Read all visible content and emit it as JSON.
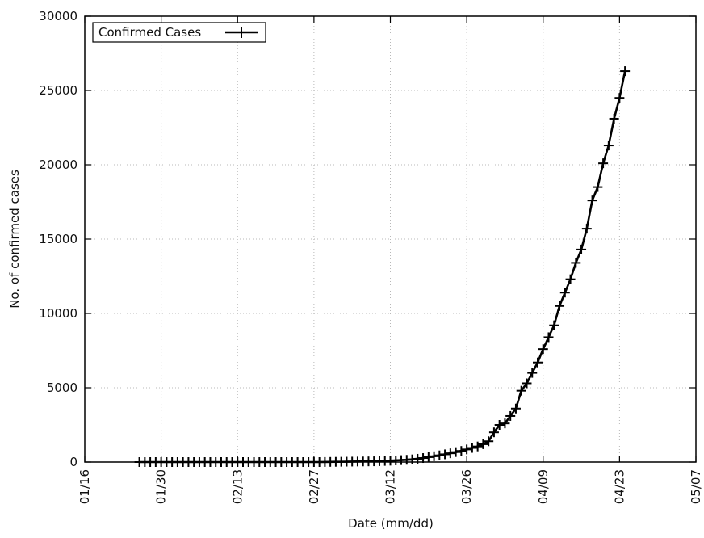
{
  "chart_data": {
    "type": "line",
    "title": "",
    "xlabel": "Date (mm/dd)",
    "ylabel": "No. of confirmed cases",
    "x_type": "date",
    "year": 2020,
    "xlim": [
      "2020-01-16",
      "2020-05-07"
    ],
    "ylim": [
      0,
      30000
    ],
    "x_ticks": [
      "01/16",
      "01/30",
      "02/13",
      "02/27",
      "03/12",
      "03/26",
      "04/09",
      "04/23",
      "05/07"
    ],
    "y_ticks": [
      "0",
      "5000",
      "10000",
      "15000",
      "20000",
      "25000",
      "30000"
    ],
    "grid": true,
    "legend": {
      "position": "top-left"
    },
    "series": [
      {
        "name": "Confirmed Cases",
        "color": "#000000",
        "marker": "plus",
        "points": [
          [
            "2020-01-26",
            0
          ],
          [
            "2020-01-27",
            0
          ],
          [
            "2020-01-28",
            0
          ],
          [
            "2020-01-29",
            0
          ],
          [
            "2020-01-30",
            0
          ],
          [
            "2020-01-31",
            0
          ],
          [
            "2020-02-01",
            0
          ],
          [
            "2020-02-02",
            0
          ],
          [
            "2020-02-03",
            0
          ],
          [
            "2020-02-04",
            0
          ],
          [
            "2020-02-05",
            0
          ],
          [
            "2020-02-06",
            0
          ],
          [
            "2020-02-07",
            0
          ],
          [
            "2020-02-08",
            0
          ],
          [
            "2020-02-09",
            0
          ],
          [
            "2020-02-10",
            0
          ],
          [
            "2020-02-11",
            0
          ],
          [
            "2020-02-12",
            0
          ],
          [
            "2020-02-13",
            0
          ],
          [
            "2020-02-14",
            0
          ],
          [
            "2020-02-15",
            0
          ],
          [
            "2020-02-16",
            0
          ],
          [
            "2020-02-17",
            0
          ],
          [
            "2020-02-18",
            0
          ],
          [
            "2020-02-19",
            0
          ],
          [
            "2020-02-20",
            0
          ],
          [
            "2020-02-21",
            0
          ],
          [
            "2020-02-22",
            0
          ],
          [
            "2020-02-23",
            0
          ],
          [
            "2020-02-24",
            0
          ],
          [
            "2020-02-25",
            0
          ],
          [
            "2020-02-26",
            0
          ],
          [
            "2020-02-27",
            0
          ],
          [
            "2020-02-28",
            0
          ],
          [
            "2020-02-29",
            5
          ],
          [
            "2020-03-01",
            10
          ],
          [
            "2020-03-02",
            15
          ],
          [
            "2020-03-03",
            20
          ],
          [
            "2020-03-04",
            25
          ],
          [
            "2020-03-05",
            30
          ],
          [
            "2020-03-06",
            35
          ],
          [
            "2020-03-07",
            40
          ],
          [
            "2020-03-08",
            45
          ],
          [
            "2020-03-09",
            50
          ],
          [
            "2020-03-10",
            60
          ],
          [
            "2020-03-11",
            75
          ],
          [
            "2020-03-12",
            90
          ],
          [
            "2020-03-13",
            110
          ],
          [
            "2020-03-14",
            130
          ],
          [
            "2020-03-15",
            150
          ],
          [
            "2020-03-16",
            180
          ],
          [
            "2020-03-17",
            220
          ],
          [
            "2020-03-18",
            270
          ],
          [
            "2020-03-19",
            330
          ],
          [
            "2020-03-20",
            390
          ],
          [
            "2020-03-21",
            450
          ],
          [
            "2020-03-22",
            520
          ],
          [
            "2020-03-23",
            590
          ],
          [
            "2020-03-24",
            670
          ],
          [
            "2020-03-25",
            750
          ],
          [
            "2020-03-26",
            850
          ],
          [
            "2020-03-27",
            950
          ],
          [
            "2020-03-28",
            1050
          ],
          [
            "2020-03-29",
            1200
          ],
          [
            "2020-03-30",
            1400
          ],
          [
            "2020-03-31",
            2000
          ],
          [
            "2020-04-01",
            2500
          ],
          [
            "2020-04-02",
            2600
          ],
          [
            "2020-04-03",
            3100
          ],
          [
            "2020-04-04",
            3600
          ],
          [
            "2020-04-05",
            4800
          ],
          [
            "2020-04-06",
            5300
          ],
          [
            "2020-04-07",
            6000
          ],
          [
            "2020-04-08",
            6700
          ],
          [
            "2020-04-09",
            7600
          ],
          [
            "2020-04-10",
            8400
          ],
          [
            "2020-04-11",
            9200
          ],
          [
            "2020-04-12",
            10500
          ],
          [
            "2020-04-13",
            11400
          ],
          [
            "2020-04-14",
            12300
          ],
          [
            "2020-04-15",
            13400
          ],
          [
            "2020-04-16",
            14300
          ],
          [
            "2020-04-17",
            15700
          ],
          [
            "2020-04-18",
            17600
          ],
          [
            "2020-04-19",
            18500
          ],
          [
            "2020-04-20",
            20100
          ],
          [
            "2020-04-21",
            21300
          ],
          [
            "2020-04-22",
            23100
          ],
          [
            "2020-04-23",
            24500
          ],
          [
            "2020-04-24",
            26300
          ]
        ]
      }
    ]
  }
}
